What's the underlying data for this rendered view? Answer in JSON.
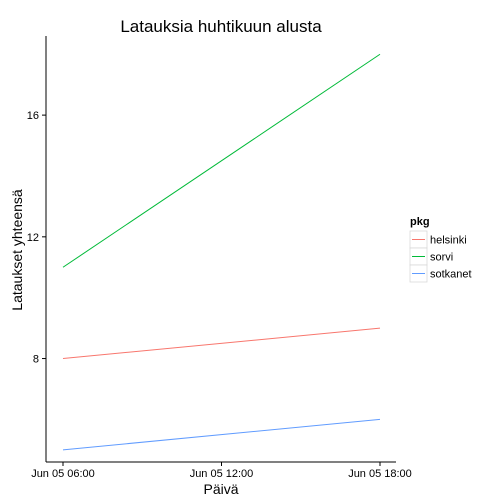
{
  "chart_data": {
    "type": "line",
    "title": "Latauksia huhtikuun alusta",
    "xlabel": "Päivä",
    "ylabel": "Lataukset yhteensä",
    "x_ticks": [
      "Jun 05 06:00",
      "Jun 05 12:00",
      "Jun 05 18:00"
    ],
    "x": [
      "Jun 05 06:00",
      "Jun 05 18:00"
    ],
    "xlim": [
      0,
      12
    ],
    "x_data_hours": [
      0,
      12
    ],
    "ylim": [
      4.6,
      18.6
    ],
    "y_ticks": [
      8,
      12,
      16
    ],
    "grid": false,
    "legend": {
      "title": "pkg",
      "position": "right"
    },
    "series": [
      {
        "name": "helsinki",
        "color": "#f8766d",
        "values": [
          8,
          9
        ]
      },
      {
        "name": "sorvi",
        "color": "#00ba38",
        "values": [
          11,
          18
        ]
      },
      {
        "name": "sotkanet",
        "color": "#619cff",
        "values": [
          5,
          6
        ]
      }
    ]
  }
}
